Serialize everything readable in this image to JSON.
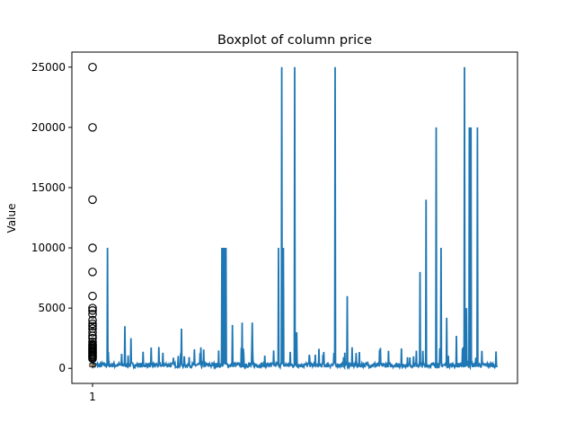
{
  "chart_data": {
    "type": "box",
    "title": "Boxplot of column price",
    "xlabel": "",
    "ylabel": "Value",
    "x_tick_labels": [
      "1"
    ],
    "y_ticks": [
      0,
      5000,
      10000,
      15000,
      20000,
      25000
    ],
    "y_tick_labels": [
      "0",
      "5000",
      "10000",
      "15000",
      "20000",
      "25000"
    ],
    "ylim": [
      -1250,
      26250
    ],
    "grid": false,
    "colors": {
      "series": "#1f77b4",
      "flier": "#000000"
    },
    "box": {
      "position": 1,
      "q1": 150,
      "median": 250,
      "q3": 400,
      "whisker_low": 0,
      "whisker_high": 700
    },
    "fliers": [
      800,
      900,
      1000,
      1100,
      1200,
      1300,
      1400,
      1500,
      1600,
      1700,
      1800,
      1900,
      2000,
      2200,
      2500,
      2700,
      3000,
      3300,
      3500,
      3700,
      4000,
      4500,
      4800,
      5000,
      6000,
      8000,
      10000,
      14000,
      20000,
      25000
    ],
    "series_line": {
      "name": "",
      "x_range": [
        0,
        1000
      ],
      "baseline": 250,
      "spikes": [
        {
          "x": 37,
          "y": 10000
        },
        {
          "x": 80,
          "y": 3500
        },
        {
          "x": 95,
          "y": 2500
        },
        {
          "x": 220,
          "y": 3300
        },
        {
          "x": 320,
          "y": 10000
        },
        {
          "x": 322,
          "y": 10000
        },
        {
          "x": 324,
          "y": 10000
        },
        {
          "x": 326,
          "y": 10000
        },
        {
          "x": 328,
          "y": 10000
        },
        {
          "x": 330,
          "y": 10000
        },
        {
          "x": 346,
          "y": 3600
        },
        {
          "x": 370,
          "y": 3800
        },
        {
          "x": 395,
          "y": 3800
        },
        {
          "x": 460,
          "y": 10000
        },
        {
          "x": 468,
          "y": 25000
        },
        {
          "x": 472,
          "y": 10000
        },
        {
          "x": 500,
          "y": 25000
        },
        {
          "x": 505,
          "y": 3000
        },
        {
          "x": 600,
          "y": 25000
        },
        {
          "x": 630,
          "y": 6000
        },
        {
          "x": 810,
          "y": 8000
        },
        {
          "x": 825,
          "y": 14000
        },
        {
          "x": 850,
          "y": 20000
        },
        {
          "x": 862,
          "y": 10000
        },
        {
          "x": 876,
          "y": 4200
        },
        {
          "x": 900,
          "y": 2700
        },
        {
          "x": 920,
          "y": 25000
        },
        {
          "x": 925,
          "y": 5000
        },
        {
          "x": 932,
          "y": 20000
        },
        {
          "x": 936,
          "y": 20000
        },
        {
          "x": 952,
          "y": 20000
        }
      ]
    }
  }
}
